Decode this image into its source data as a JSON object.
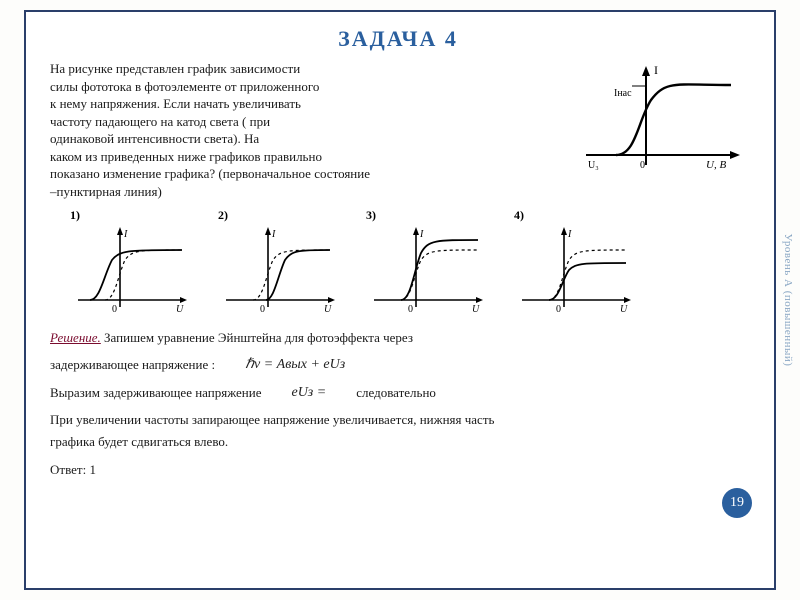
{
  "title": "ЗАДАЧА 4",
  "problem": {
    "lines": [
      "На рисунке представлен график зависимости",
      "силы фототока в фотоэлементе от приложенного",
      "к нему напряжения. Если начать увеличивать",
      "частоту падающего  на катод света ( при",
      "одинаковой интенсивности света). На",
      "каком из приведенных ниже графиков правильно",
      "показано изменение графика? (первоначальное состояние",
      "    –пунктирная линия)"
    ]
  },
  "main_graph": {
    "axis_color": "#000000",
    "curve_color": "#000000",
    "y_label": "I",
    "x_label_left": "Uз",
    "x_label_right": "U, В",
    "i_sat_label": "Iнас",
    "stroke_width": 1.6
  },
  "options": [
    {
      "label": "1)",
      "type": "shift-left-same-sat"
    },
    {
      "label": "2)",
      "type": "shift-right-same-sat"
    },
    {
      "label": "3)",
      "type": "same-start-higher-sat"
    },
    {
      "label": "4)",
      "type": "same-start-lower-sat"
    }
  ],
  "option_style": {
    "axis_color": "#000000",
    "dashed_color": "#000000",
    "solid_color": "#000000",
    "stroke_solid": 1.8,
    "stroke_dash": 1.2,
    "dash_pattern": "3 3",
    "x_label": "U",
    "y_label": "I"
  },
  "solution": {
    "lead": "Решение.",
    "line1_rest": " Запишем уравнение Эйнштейна для фотоэффекта через",
    "line2": "задерживающее напряжение :",
    "eq1": "ℏν = Aвых + eUз",
    "line3a": "Выразим задерживающее напряжение",
    "eq2": "eUз =",
    "line3b": "следовательно",
    "line4": "При увеличении  частоты запирающее напряжение увеличивается, нижняя часть",
    "line5": "графика будет сдвигаться влево.",
    "answer_label": "Ответ: 1"
  },
  "page_number": "19",
  "side_text": "Уровень А (повышенный)"
}
